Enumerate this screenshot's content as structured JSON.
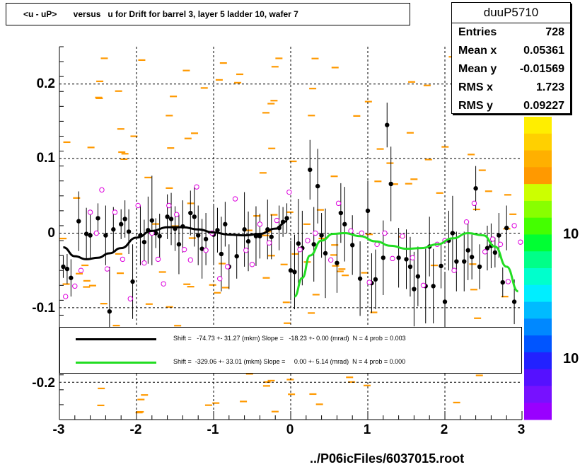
{
  "title": "<u - uP>       versus   u for Drift for barrel 3, layer 5 ladder 10, wafer 7",
  "stats": {
    "name": "duuP5710",
    "rows": [
      {
        "label": "Entries",
        "value": "728"
      },
      {
        "label": "Mean x",
        "value": "0.05361"
      },
      {
        "label": "Mean y",
        "value": "-0.01569"
      },
      {
        "label": "RMS x",
        "value": "1.723"
      },
      {
        "label": "RMS y",
        "value": "0.09227"
      }
    ]
  },
  "legend": [
    {
      "text": "Shift =   -74.73 +- 31.27 (mkm) Slope =   -18.23 +- 0.00 (mrad)  N = 4 prob = 0.003",
      "color": "#000000"
    },
    {
      "text": "Shift =  -329.06 +- 33.01 (mkm) Slope =     0.00 +- 5.14 (mrad)  N = 4 prob = 0.000",
      "color": "#22dd22"
    }
  ],
  "footer": "../P06icFiles/6037015.root",
  "z_axis_labels": [
    "10",
    "10"
  ],
  "chart_data": {
    "type": "scatter",
    "xlim": [
      -3,
      3
    ],
    "ylim": [
      -0.25,
      0.25
    ],
    "x_ticks": [
      "-3",
      "-2",
      "-1",
      "0",
      "1",
      "2",
      "3"
    ],
    "y_ticks": [
      "-0.2",
      "-0.1",
      "0",
      "0.1",
      "0.2"
    ],
    "grid": true,
    "colors": {
      "fit_left": "#000000",
      "fit_right": "#22dd22",
      "profile_points": "#000000",
      "hollow_points": "#dd00dd",
      "histogram_cells": "#ff9900"
    },
    "fit_left": {
      "x": [
        -2.95,
        -2.8,
        -2.65,
        -2.5,
        -2.35,
        -2.2,
        -2.0,
        -1.8,
        -1.6,
        -1.4,
        -1.2,
        -1.0,
        -0.8,
        -0.6,
        -0.4,
        -0.2,
        -0.05
      ],
      "y": [
        -0.019,
        -0.031,
        -0.035,
        -0.033,
        -0.027,
        -0.02,
        -0.006,
        0.003,
        0.008,
        0.008,
        0.005,
        0.001,
        -0.002,
        -0.003,
        -0.001,
        0.006,
        0.016
      ]
    },
    "fit_right": {
      "x": [
        0.05,
        0.15,
        0.25,
        0.4,
        0.55,
        0.7,
        0.9,
        1.1,
        1.3,
        1.5,
        1.7,
        1.9,
        2.1,
        2.3,
        2.5,
        2.65,
        2.8,
        2.95
      ],
      "y": [
        -0.085,
        -0.06,
        -0.03,
        -0.01,
        -0.001,
        0.0,
        -0.004,
        -0.011,
        -0.017,
        -0.021,
        -0.02,
        -0.015,
        -0.007,
        0.0,
        -0.003,
        -0.018,
        -0.045,
        -0.078
      ]
    },
    "profile_points": {
      "x": [
        -2.95,
        -2.9,
        -2.85,
        -2.75,
        -2.65,
        -2.6,
        -2.5,
        -2.4,
        -2.35,
        -2.3,
        -2.2,
        -2.15,
        -2.1,
        -2.05,
        -1.95,
        -1.9,
        -1.85,
        -1.8,
        -1.75,
        -1.7,
        -1.6,
        -1.55,
        -1.5,
        -1.45,
        -1.4,
        -1.3,
        -1.25,
        -1.2,
        -1.15,
        -1.1,
        -1.0,
        -0.95,
        -0.9,
        -0.85,
        -0.8,
        -0.7,
        -0.6,
        -0.55,
        -0.45,
        -0.4,
        -0.3,
        -0.25,
        -0.15,
        -0.1,
        -0.05,
        0.0,
        0.05,
        0.1,
        0.15,
        0.25,
        0.3,
        0.35,
        0.4,
        0.45,
        0.6,
        0.65,
        0.7,
        0.8,
        0.9,
        1.0,
        1.05,
        1.1,
        1.2,
        1.25,
        1.3,
        1.4,
        1.5,
        1.55,
        1.6,
        1.65,
        1.75,
        1.8,
        1.85,
        1.95,
        2.0,
        2.05,
        2.1,
        2.15,
        2.25,
        2.3,
        2.35,
        2.4,
        2.45,
        2.55,
        2.6,
        2.65,
        2.7,
        2.75,
        2.8,
        2.9
      ],
      "y": [
        -0.045,
        -0.048,
        -0.06,
        0.016,
        -0.001,
        -0.003,
        0.02,
        -0.003,
        -0.105,
        0.005,
        0.012,
        0.019,
        0.002,
        -0.065,
        -0.003,
        -0.012,
        0.004,
        0.017,
        0.0,
        -0.004,
        0.022,
        0.019,
        0.006,
        -0.015,
        0.009,
        0.027,
        0.022,
        -0.003,
        -0.021,
        -0.008,
        -0.002,
        0.004,
        -0.028,
        0.012,
        -0.045,
        -0.031,
        0.005,
        -0.011,
        -0.004,
        -0.004,
        0.005,
        -0.005,
        0.007,
        0.015,
        0.02,
        -0.05,
        -0.052,
        -0.014,
        -0.02,
        0.085,
        -0.015,
        0.063,
        -0.003,
        -0.027,
        -0.04,
        0.027,
        0.012,
        -0.016,
        -0.061,
        0.03,
        -0.067,
        -0.062,
        -0.033,
        0.145,
        0.066,
        -0.033,
        -0.035,
        -0.045,
        -0.075,
        -0.058,
        -0.071,
        -0.018,
        -0.071,
        -0.044,
        -0.092,
        -0.01,
        0.0,
        -0.038,
        -0.038,
        -0.023,
        -0.032,
        0.06,
        -0.045,
        -0.02,
        -0.017,
        -0.026,
        -0.003,
        -0.066,
        0.007,
        -0.092
      ],
      "err": [
        0.015,
        0.02,
        0.025,
        0.04,
        0.035,
        0.03,
        0.02,
        0.04,
        0.06,
        0.03,
        0.02,
        0.025,
        0.03,
        0.05,
        0.04,
        0.03,
        0.045,
        0.06,
        0.02,
        0.03,
        0.03,
        0.035,
        0.03,
        0.04,
        0.035,
        0.03,
        0.04,
        0.04,
        0.04,
        0.035,
        0.04,
        0.03,
        0.05,
        0.03,
        0.03,
        0.03,
        0.05,
        0.04,
        0.04,
        0.03,
        0.04,
        0.03,
        0.03,
        0.02,
        0.02,
        0.04,
        0.05,
        0.06,
        0.05,
        0.04,
        0.05,
        0.05,
        0.03,
        0.06,
        0.04,
        0.04,
        0.05,
        0.04,
        0.05,
        0.04,
        0.04,
        0.04,
        0.05,
        0.03,
        0.05,
        0.04,
        0.04,
        0.04,
        0.05,
        0.04,
        0.05,
        0.04,
        0.05,
        0.03,
        0.04,
        0.04,
        0.05,
        0.04,
        0.04,
        0.04,
        0.03,
        0.03,
        0.03,
        0.03,
        0.03,
        0.02,
        0.03,
        0.02,
        0.03,
        0.03
      ]
    },
    "hollow_points": {
      "x": [
        -2.92,
        -2.8,
        -2.72,
        -2.6,
        -2.52,
        -2.45,
        -2.38,
        -2.28,
        -2.18,
        -2.08,
        -1.98,
        -1.9,
        -1.8,
        -1.72,
        -1.65,
        -1.58,
        -1.48,
        -1.38,
        -1.3,
        -1.22,
        -1.1,
        -1.02,
        -0.92,
        -0.82,
        -0.72,
        -0.58,
        -0.5,
        -0.4,
        -0.28,
        -0.18,
        -0.02,
        0.12,
        0.22,
        0.32,
        0.52,
        0.62,
        0.78,
        0.92,
        1.02,
        1.12,
        1.22,
        1.32,
        1.45,
        1.58,
        1.72,
        1.9,
        2.0,
        2.12,
        2.28,
        2.38,
        2.52,
        2.62,
        2.72,
        2.82,
        2.9,
        2.98
      ],
      "x_note": null,
      "y": [
        -0.085,
        -0.071,
        -0.05,
        0.028,
        0.0,
        0.058,
        -0.048,
        0.028,
        -0.035,
        -0.088,
        0.037,
        -0.04,
        0.0,
        -0.035,
        -0.068,
        0.037,
        0.025,
        -0.022,
        -0.036,
        0.062,
        -0.023,
        0.0,
        -0.061,
        -0.045,
        0.046,
        -0.023,
        -0.042,
        0.012,
        -0.013,
        0.017,
        0.055,
        -0.022,
        -0.01,
        0.0,
        -0.036,
        0.04,
        0.003,
        0.0,
        -0.066,
        -0.015,
        0.0,
        -0.034,
        -0.004,
        -0.033,
        -0.07,
        -0.015,
        -0.01,
        -0.05,
        0.015,
        0.04,
        -0.025,
        -0.008,
        -0.015,
        -0.065,
        0.01,
        -0.012
      ]
    }
  }
}
